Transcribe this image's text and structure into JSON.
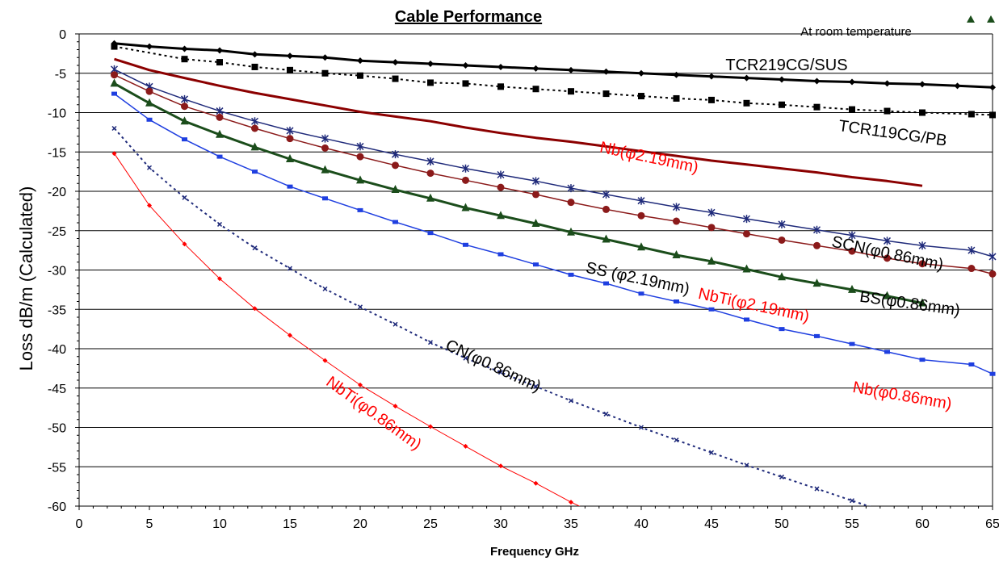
{
  "chart_data": {
    "type": "line",
    "title": "Cable Performance",
    "xlabel": "Frequency GHz",
    "ylabel": "Loss dB/m  (Calculated)",
    "xlim": [
      0,
      65
    ],
    "ylim": [
      -60,
      0
    ],
    "x_ticks": [
      "0",
      "5",
      "10",
      "15",
      "20",
      "25",
      "30",
      "35",
      "40",
      "45",
      "50",
      "55",
      "60",
      "65"
    ],
    "y_ticks": [
      "0",
      "-5",
      "-10",
      "-15",
      "-20",
      "-25",
      "-30",
      "-35",
      "-40",
      "-45",
      "-50",
      "-55",
      "-60"
    ],
    "grid": "horizontal",
    "note": "At room temperature",
    "series": [
      {
        "name": "TCR219CG/SUS",
        "color": "#000000",
        "style": "solid",
        "width": 3,
        "marker": "diamond",
        "x": [
          2.5,
          5,
          7.5,
          10,
          12.5,
          15,
          17.5,
          20,
          22.5,
          25,
          27.5,
          30,
          32.5,
          35,
          37.5,
          40,
          42.5,
          45,
          47.5,
          50,
          52.5,
          55,
          57.5,
          60,
          62.5,
          65
        ],
        "y": [
          -1.2,
          -1.6,
          -1.9,
          -2.1,
          -2.6,
          -2.8,
          -3.0,
          -3.4,
          -3.6,
          -3.8,
          -4.0,
          -4.2,
          -4.4,
          -4.6,
          -4.8,
          -5.0,
          -5.2,
          -5.4,
          -5.6,
          -5.8,
          -6.0,
          -6.1,
          -6.3,
          -6.4,
          -6.6,
          -6.8
        ]
      },
      {
        "name": "TCR119CG/PB",
        "color": "#000000",
        "style": "dotted",
        "width": 2,
        "marker": "square",
        "x": [
          2.5,
          7.5,
          10,
          12.5,
          15,
          17.5,
          20,
          22.5,
          25,
          27.5,
          30,
          32.5,
          35,
          37.5,
          40,
          42.5,
          45,
          47.5,
          50,
          52.5,
          55,
          57.5,
          60,
          63.5,
          65
        ],
        "y": [
          -1.6,
          -3.2,
          -3.6,
          -4.2,
          -4.6,
          -5.0,
          -5.3,
          -5.7,
          -6.2,
          -6.3,
          -6.7,
          -7.0,
          -7.3,
          -7.6,
          -7.9,
          -8.2,
          -8.4,
          -8.8,
          -9.0,
          -9.3,
          -9.6,
          -9.8,
          -10.0,
          -10.2,
          -10.3
        ]
      },
      {
        "name": "Nb(φ2.19mm)",
        "color": "#8b0000",
        "style": "solid",
        "width": 3,
        "marker": "none",
        "x": [
          2.5,
          5,
          7.5,
          10,
          12.5,
          15,
          17.5,
          20,
          22.5,
          25,
          27.5,
          30,
          32.5,
          35,
          37.5,
          40,
          42.5,
          45,
          47.5,
          50,
          52.5,
          55,
          57.5,
          60
        ],
        "y": [
          -3.2,
          -4.6,
          -5.6,
          -6.6,
          -7.5,
          -8.3,
          -9.1,
          -9.9,
          -10.5,
          -11.1,
          -11.9,
          -12.6,
          -13.2,
          -13.7,
          -14.3,
          -14.9,
          -15.5,
          -16.1,
          -16.6,
          -17.1,
          -17.6,
          -18.2,
          -18.7,
          -19.3
        ]
      },
      {
        "name": "SCN(φ0.86mm)",
        "color": "#1f2a7a",
        "style": "solid",
        "width": 1.5,
        "marker": "star",
        "x": [
          2.5,
          5,
          7.5,
          10,
          12.5,
          15,
          17.5,
          20,
          22.5,
          25,
          27.5,
          30,
          32.5,
          35,
          37.5,
          40,
          42.5,
          45,
          47.5,
          50,
          52.5,
          55,
          57.5,
          60,
          63.5,
          65
        ],
        "y": [
          -4.5,
          -6.7,
          -8.3,
          -9.8,
          -11.1,
          -12.3,
          -13.3,
          -14.3,
          -15.3,
          -16.2,
          -17.1,
          -17.9,
          -18.7,
          -19.6,
          -20.4,
          -21.2,
          -22.0,
          -22.7,
          -23.5,
          -24.2,
          -24.9,
          -25.6,
          -26.3,
          -26.9,
          -27.5,
          -28.3
        ]
      },
      {
        "name": "BS(φ0.86mm)",
        "color": "#8b1a1a",
        "style": "solid",
        "width": 1.5,
        "marker": "circle",
        "x": [
          2.5,
          5,
          7.5,
          10,
          12.5,
          15,
          17.5,
          20,
          22.5,
          25,
          27.5,
          30,
          32.5,
          35,
          37.5,
          40,
          42.5,
          45,
          47.5,
          50,
          52.5,
          55,
          57.5,
          60,
          63.5,
          65
        ],
        "y": [
          -5.2,
          -7.3,
          -9.2,
          -10.6,
          -12.0,
          -13.3,
          -14.5,
          -15.6,
          -16.7,
          -17.7,
          -18.6,
          -19.5,
          -20.4,
          -21.4,
          -22.3,
          -23.1,
          -23.8,
          -24.6,
          -25.4,
          -26.2,
          -26.9,
          -27.6,
          -28.5,
          -29.2,
          -29.8,
          -30.5
        ]
      },
      {
        "name": "SS (φ2.19mm)",
        "color": "#1b4d1b",
        "style": "solid",
        "width": 3,
        "marker": "triangle",
        "x": [
          2.5,
          5,
          7.5,
          10,
          12.5,
          15,
          17.5,
          20,
          22.5,
          25,
          27.5,
          30,
          32.5,
          35,
          37.5,
          40,
          42.5,
          45,
          47.5,
          50,
          52.5,
          55,
          57.5,
          60
        ],
        "y": [
          -6.3,
          -8.8,
          -11.1,
          -12.8,
          -14.4,
          -15.9,
          -17.3,
          -18.6,
          -19.8,
          -20.9,
          -22.1,
          -23.1,
          -24.1,
          -25.2,
          -26.1,
          -27.1,
          -28.1,
          -28.9,
          -29.9,
          -30.9,
          -31.7,
          -32.5,
          -33.3,
          -34.2
        ]
      },
      {
        "name": "Nb(φ0.86mm)",
        "color": "#1f3fe0",
        "style": "solid",
        "width": 1.5,
        "marker": "smallsquare",
        "x": [
          2.5,
          5,
          7.5,
          10,
          12.5,
          15,
          17.5,
          20,
          22.5,
          25,
          27.5,
          30,
          32.5,
          35,
          37.5,
          40,
          42.5,
          45,
          47.5,
          50,
          52.5,
          55,
          57.5,
          60,
          63.5,
          65
        ],
        "y": [
          -7.6,
          -10.9,
          -13.4,
          -15.6,
          -17.5,
          -19.4,
          -20.9,
          -22.4,
          -23.9,
          -25.3,
          -26.8,
          -28.0,
          -29.3,
          -30.6,
          -31.7,
          -33.0,
          -34.0,
          -35.0,
          -36.3,
          -37.5,
          -38.4,
          -39.4,
          -40.4,
          -41.4,
          -42.0,
          -43.2
        ]
      },
      {
        "name": "CN(φ0.86mm)",
        "color": "#1f2a7a",
        "style": "dotted",
        "width": 2,
        "marker": "x",
        "x": [
          2.5,
          5,
          7.5,
          10,
          12.5,
          15,
          17.5,
          20,
          22.5,
          25,
          27.5,
          30,
          32.5,
          35,
          37.5,
          40,
          42.5,
          45,
          47.5,
          50,
          52.5,
          55,
          57.5
        ],
        "y": [
          -12.0,
          -17.0,
          -20.8,
          -24.2,
          -27.2,
          -29.8,
          -32.4,
          -34.7,
          -36.9,
          -39.2,
          -41.2,
          -43.0,
          -44.8,
          -46.6,
          -48.3,
          -50.0,
          -51.6,
          -53.2,
          -54.8,
          -56.3,
          -57.8,
          -59.3,
          -60.8
        ]
      },
      {
        "name": "NbTi(φ0.86mm)",
        "color": "#ff0000",
        "style": "solid",
        "width": 1,
        "marker": "smalldiamond",
        "x": [
          2.5,
          5,
          7.5,
          10,
          12.5,
          15,
          17.5,
          20,
          22.5,
          25,
          27.5,
          30,
          32.5,
          35,
          37.5
        ],
        "y": [
          -15.2,
          -21.8,
          -26.7,
          -31.1,
          -34.9,
          -38.3,
          -41.5,
          -44.6,
          -47.3,
          -49.9,
          -52.4,
          -54.9,
          -57.1,
          -59.5,
          -61.6
        ]
      }
    ],
    "annotations": [
      {
        "text": "TCR219CG/SUS",
        "color": "#000000",
        "x": 46,
        "y": -4.6,
        "rotate": 0
      },
      {
        "text": "TCR119CG/PB",
        "color": "#000000",
        "x": 54,
        "y": -12.3,
        "rotate": 8
      },
      {
        "text": "Nb(φ2.19mm)",
        "color": "#ff0000",
        "x": 37,
        "y": -15.0,
        "rotate": 12
      },
      {
        "text": "SCN(φ0.86mm)",
        "color": "#000000",
        "x": 53.5,
        "y": -27.0,
        "rotate": 12
      },
      {
        "text": "SS (φ2.19mm)",
        "color": "#000000",
        "x": 36,
        "y": -30.3,
        "rotate": 12
      },
      {
        "text": "NbTi(φ2.19mm)",
        "color": "#ff0000",
        "x": 44,
        "y": -33.6,
        "rotate": 12
      },
      {
        "text": "BS(φ0.86mm)",
        "color": "#000000",
        "x": 55.5,
        "y": -34.0,
        "rotate": 8
      },
      {
        "text": "CN(φ0.86mm)",
        "color": "#000000",
        "x": 26,
        "y": -40.0,
        "rotate": 25
      },
      {
        "text": "NbTi(φ0.86mm)",
        "color": "#ff0000",
        "x": 17.5,
        "y": -44.5,
        "rotate": 36
      },
      {
        "text": "Nb(φ0.86mm)",
        "color": "#ff0000",
        "x": 55,
        "y": -45.5,
        "rotate": 10
      }
    ],
    "legend_markers": [
      {
        "color": "#1b4d1b"
      },
      {
        "color": "#1b4d1b"
      }
    ]
  }
}
